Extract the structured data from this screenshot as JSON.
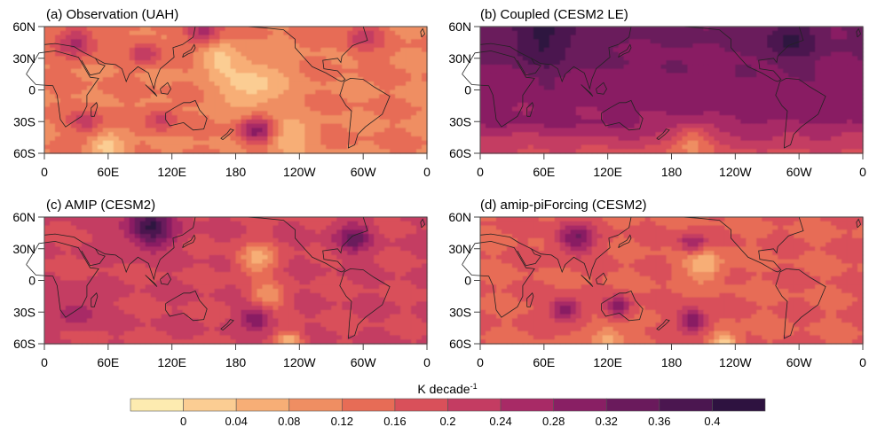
{
  "chart_data": [
    {
      "type": "heatmap",
      "title": "(a) Observation (UAH)",
      "xticks": [
        "0",
        "60E",
        "120E",
        "180",
        "120W",
        "60W",
        "0"
      ],
      "yticks": [
        "60N",
        "30N",
        "0",
        "30S",
        "60S"
      ],
      "xlim": [
        0,
        360
      ],
      "ylim": [
        -60,
        60
      ],
      "blobs": [
        {
          "lon": 30,
          "lat": 45,
          "value": 0.26,
          "r": 18
        },
        {
          "lon": 95,
          "lat": 35,
          "value": 0.24,
          "r": 14
        },
        {
          "lon": 150,
          "lat": 55,
          "value": 0.26,
          "r": 16
        },
        {
          "lon": 200,
          "lat": -38,
          "value": 0.3,
          "r": 16
        },
        {
          "lon": 195,
          "lat": 5,
          "value": 0.02,
          "r": 30
        },
        {
          "lon": 165,
          "lat": 30,
          "value": 0.04,
          "r": 18
        },
        {
          "lon": 40,
          "lat": -30,
          "value": 0.22,
          "r": 16
        },
        {
          "lon": 110,
          "lat": -28,
          "value": 0.22,
          "r": 14
        },
        {
          "lon": 230,
          "lat": -45,
          "value": 0.04,
          "r": 20
        },
        {
          "lon": 300,
          "lat": 50,
          "value": 0.22,
          "r": 18
        },
        {
          "lon": 60,
          "lat": -55,
          "value": 0.02,
          "r": 16
        },
        {
          "lon": 330,
          "lat": 10,
          "value": 0.12,
          "r": 20
        }
      ],
      "base": 0.12
    },
    {
      "type": "heatmap",
      "title": "(b) Coupled (CESM2 LE)",
      "xticks": [
        "0",
        "60E",
        "120E",
        "180",
        "120W",
        "60W",
        "0"
      ],
      "yticks": [
        "60N",
        "30N",
        "0",
        "30S",
        "60S"
      ],
      "xlim": [
        0,
        360
      ],
      "ylim": [
        -60,
        60
      ],
      "blobs": [
        {
          "lon": 60,
          "lat": 45,
          "value": 0.38,
          "r": 35
        },
        {
          "lon": 290,
          "lat": 45,
          "value": 0.38,
          "r": 25
        },
        {
          "lon": 200,
          "lat": -48,
          "value": 0.18,
          "r": 20
        }
      ],
      "base": 0.3
    },
    {
      "type": "heatmap",
      "title": "(c) AMIP (CESM2)",
      "xticks": [
        "0",
        "60E",
        "120E",
        "180",
        "120W",
        "60W",
        "0"
      ],
      "yticks": [
        "60N",
        "30N",
        "0",
        "30S",
        "60S"
      ],
      "xlim": [
        0,
        360
      ],
      "ylim": [
        -60,
        60
      ],
      "blobs": [
        {
          "lon": 100,
          "lat": 50,
          "value": 0.4,
          "r": 22
        },
        {
          "lon": 290,
          "lat": 40,
          "value": 0.34,
          "r": 16
        },
        {
          "lon": 200,
          "lat": 20,
          "value": 0.06,
          "r": 18
        },
        {
          "lon": 210,
          "lat": -15,
          "value": 0.08,
          "r": 16
        },
        {
          "lon": 200,
          "lat": -35,
          "value": 0.32,
          "r": 14
        },
        {
          "lon": 30,
          "lat": -30,
          "value": 0.28,
          "r": 16
        },
        {
          "lon": 230,
          "lat": -58,
          "value": 0.04,
          "r": 12
        }
      ],
      "base": 0.2
    },
    {
      "type": "heatmap",
      "title": "(d) amip-piForcing (CESM2)",
      "xticks": [
        "0",
        "60E",
        "120E",
        "180",
        "120W",
        "60W",
        "0"
      ],
      "yticks": [
        "60N",
        "30N",
        "0",
        "30S",
        "60S"
      ],
      "xlim": [
        0,
        360
      ],
      "ylim": [
        -60,
        60
      ],
      "blobs": [
        {
          "lon": 90,
          "lat": 40,
          "value": 0.32,
          "r": 18
        },
        {
          "lon": 200,
          "lat": 35,
          "value": 0.3,
          "r": 12
        },
        {
          "lon": 210,
          "lat": 15,
          "value": 0.04,
          "r": 18
        },
        {
          "lon": 80,
          "lat": -28,
          "value": 0.32,
          "r": 14
        },
        {
          "lon": 130,
          "lat": -25,
          "value": 0.3,
          "r": 12
        },
        {
          "lon": 200,
          "lat": -38,
          "value": 0.32,
          "r": 14
        },
        {
          "lon": 230,
          "lat": -58,
          "value": 0.02,
          "r": 12
        },
        {
          "lon": 120,
          "lat": -55,
          "value": 0.06,
          "r": 16
        }
      ],
      "base": 0.16
    }
  ],
  "colorbar": {
    "label": "K decade",
    "label_sup": "-1",
    "ticks": [
      "0",
      "0.04",
      "0.08",
      "0.12",
      "0.16",
      "0.2",
      "0.24",
      "0.28",
      "0.32",
      "0.36",
      "0.4"
    ],
    "levels": [
      0,
      0.04,
      0.08,
      0.12,
      0.16,
      0.2,
      0.24,
      0.28,
      0.32,
      0.36,
      0.4
    ],
    "colors": [
      "#fdebb0",
      "#fbcd93",
      "#f7ae76",
      "#ef8e62",
      "#e76c56",
      "#d9505a",
      "#c43c62",
      "#a82a66",
      "#891f64",
      "#6a1a5c",
      "#4b1650",
      "#2e1240"
    ]
  }
}
